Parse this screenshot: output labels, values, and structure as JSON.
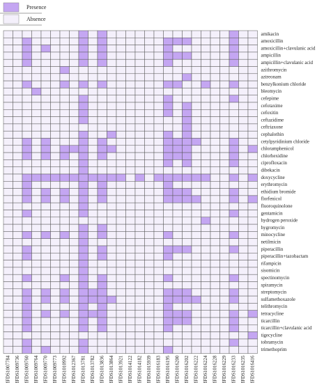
{
  "chart_data": {
    "type": "heatmap",
    "legend": [
      {
        "name": "Presence",
        "color": "#c4a6f2"
      },
      {
        "name": "Absence",
        "color": "#f4f0fb"
      }
    ],
    "x_categories": [
      "MFDS1007784",
      "MFDS1009736",
      "MFDS1009760",
      "MFDS1009764",
      "MFDS1009770",
      "MFDS1009773",
      "MFDS1010992",
      "MFDS1012367",
      "MFDS1013781",
      "MFDS1013782",
      "MFDS1013836",
      "MFDS1013864",
      "MFDS1013921",
      "MFDS1014122",
      "MFDS1014182",
      "MFDS1015939",
      "MFDS1016183",
      "MFDS1016195",
      "MFDS1016200",
      "MFDS1016202",
      "MFDS1016222",
      "MFDS1016224",
      "MFDS1016228",
      "MFDS1016229",
      "MFDS1016233",
      "MFDS1016235",
      "MFDS1016416"
    ],
    "y_categories": [
      "amikacin",
      "amoxicillin",
      "amoxicillin+clavulanic acid",
      "ampicillin",
      "ampicillin+clavulanic acid",
      "azithromycin",
      "aztreonam",
      "benzylkonium chloride",
      "bleomycin",
      "cefepime",
      "cefotaxime",
      "cefoxitin",
      "ceftazidime",
      "ceftriaxone",
      "cephalothin",
      "cetylpyridinium chloride",
      "chloramphenicol",
      "chlorhexidine",
      "ciprofloxacin",
      "dibekacin",
      "doxycycline",
      "erythromycin",
      "ethidium bromide",
      "florfenicol",
      "fluoroquinolone",
      "gentamicin",
      "hydrogen peroxide",
      "hygromycin",
      "minocycline",
      "netilmicin",
      "piperacillin",
      "piperacillin+tazobactam",
      "rifampicin",
      "sisomicin",
      "spectinomycin",
      "spiramycin",
      "streptomycin",
      "sulfamethoxazole",
      "telithromycin",
      "tetracycline",
      "ticarcillin",
      "ticarcillin+clavulanic acid",
      "tigecycline",
      "tobramycin",
      "trimethoprim"
    ],
    "values": [
      [
        0,
        0,
        0,
        0,
        0,
        0,
        0,
        0,
        1,
        0,
        1,
        0,
        0,
        0,
        0,
        0,
        0,
        0,
        0,
        0,
        0,
        0,
        0,
        0,
        1,
        0,
        0
      ],
      [
        0,
        0,
        1,
        0,
        0,
        0,
        0,
        0,
        1,
        0,
        1,
        0,
        0,
        0,
        0,
        0,
        0,
        1,
        1,
        1,
        0,
        0,
        0,
        0,
        1,
        0,
        0
      ],
      [
        0,
        0,
        1,
        0,
        1,
        0,
        0,
        0,
        1,
        0,
        1,
        0,
        0,
        0,
        0,
        0,
        0,
        1,
        0,
        0,
        0,
        0,
        0,
        0,
        1,
        0,
        0
      ],
      [
        0,
        0,
        1,
        0,
        0,
        0,
        0,
        0,
        1,
        0,
        1,
        0,
        0,
        0,
        0,
        0,
        0,
        1,
        1,
        1,
        0,
        0,
        0,
        0,
        1,
        0,
        0
      ],
      [
        0,
        0,
        1,
        0,
        0,
        0,
        0,
        0,
        1,
        0,
        1,
        0,
        0,
        0,
        0,
        0,
        0,
        1,
        0,
        0,
        0,
        0,
        0,
        0,
        1,
        0,
        0
      ],
      [
        0,
        0,
        0,
        0,
        0,
        0,
        1,
        0,
        0,
        0,
        0,
        0,
        0,
        0,
        0,
        0,
        0,
        0,
        0,
        0,
        0,
        0,
        0,
        0,
        0,
        0,
        0
      ],
      [
        0,
        0,
        0,
        0,
        0,
        0,
        0,
        0,
        0,
        0,
        0,
        0,
        0,
        0,
        0,
        0,
        0,
        0,
        0,
        1,
        0,
        0,
        0,
        0,
        0,
        0,
        0
      ],
      [
        0,
        0,
        1,
        0,
        0,
        0,
        1,
        0,
        1,
        0,
        1,
        0,
        0,
        0,
        0,
        0,
        0,
        1,
        1,
        0,
        0,
        1,
        0,
        0,
        1,
        0,
        0
      ],
      [
        0,
        0,
        0,
        1,
        0,
        0,
        0,
        0,
        0,
        0,
        0,
        0,
        0,
        0,
        0,
        0,
        0,
        0,
        0,
        0,
        0,
        0,
        0,
        0,
        0,
        0,
        0
      ],
      [
        0,
        0,
        0,
        0,
        0,
        0,
        0,
        0,
        1,
        0,
        0,
        0,
        0,
        0,
        0,
        0,
        0,
        1,
        0,
        0,
        0,
        0,
        0,
        0,
        1,
        0,
        0
      ],
      [
        0,
        0,
        0,
        0,
        0,
        0,
        0,
        0,
        1,
        0,
        0,
        0,
        0,
        0,
        0,
        0,
        0,
        1,
        0,
        1,
        0,
        0,
        0,
        0,
        0,
        0,
        0
      ],
      [
        0,
        0,
        0,
        0,
        0,
        0,
        0,
        0,
        1,
        0,
        0,
        0,
        0,
        0,
        0,
        0,
        0,
        1,
        0,
        1,
        0,
        0,
        0,
        0,
        0,
        0,
        0
      ],
      [
        0,
        0,
        0,
        0,
        0,
        0,
        0,
        0,
        1,
        0,
        0,
        0,
        0,
        0,
        0,
        0,
        0,
        0,
        0,
        1,
        0,
        0,
        0,
        0,
        0,
        0,
        0
      ],
      [
        0,
        0,
        0,
        0,
        0,
        0,
        0,
        0,
        0,
        0,
        0,
        0,
        0,
        0,
        0,
        0,
        0,
        0,
        0,
        1,
        0,
        0,
        0,
        0,
        0,
        0,
        0
      ],
      [
        0,
        0,
        0,
        0,
        0,
        0,
        0,
        0,
        1,
        0,
        0,
        1,
        0,
        0,
        0,
        0,
        0,
        1,
        0,
        1,
        0,
        0,
        0,
        0,
        0,
        0,
        0
      ],
      [
        0,
        0,
        1,
        0,
        1,
        0,
        0,
        0,
        1,
        0,
        1,
        0,
        0,
        0,
        0,
        0,
        0,
        1,
        1,
        1,
        1,
        0,
        0,
        0,
        1,
        0,
        0
      ],
      [
        0,
        0,
        1,
        0,
        1,
        0,
        1,
        1,
        1,
        0,
        1,
        1,
        0,
        0,
        0,
        0,
        0,
        1,
        1,
        1,
        0,
        0,
        0,
        0,
        1,
        0,
        1
      ],
      [
        0,
        0,
        1,
        0,
        1,
        0,
        1,
        0,
        1,
        0,
        1,
        0,
        0,
        0,
        0,
        0,
        0,
        1,
        1,
        1,
        0,
        0,
        0,
        0,
        1,
        0,
        0
      ],
      [
        0,
        0,
        0,
        0,
        0,
        0,
        0,
        0,
        1,
        0,
        0,
        0,
        0,
        0,
        0,
        0,
        0,
        1,
        0,
        1,
        0,
        0,
        0,
        0,
        1,
        0,
        0
      ],
      [
        0,
        0,
        0,
        0,
        0,
        0,
        0,
        0,
        1,
        0,
        0,
        0,
        0,
        0,
        0,
        0,
        0,
        0,
        0,
        0,
        0,
        0,
        0,
        0,
        0,
        0,
        0
      ],
      [
        0,
        0,
        1,
        1,
        1,
        1,
        1,
        1,
        1,
        1,
        1,
        1,
        1,
        0,
        1,
        0,
        1,
        1,
        1,
        1,
        1,
        1,
        0,
        0,
        1,
        0,
        1
      ],
      [
        0,
        0,
        1,
        0,
        0,
        0,
        0,
        0,
        1,
        0,
        1,
        0,
        0,
        0,
        0,
        0,
        0,
        1,
        0,
        0,
        0,
        0,
        0,
        0,
        0,
        0,
        0
      ],
      [
        0,
        0,
        1,
        0,
        1,
        0,
        1,
        0,
        1,
        0,
        1,
        0,
        0,
        0,
        0,
        0,
        0,
        1,
        1,
        1,
        0,
        0,
        0,
        0,
        1,
        0,
        0
      ],
      [
        0,
        0,
        1,
        0,
        1,
        0,
        1,
        0,
        1,
        0,
        1,
        0,
        0,
        0,
        0,
        0,
        0,
        1,
        1,
        1,
        1,
        0,
        0,
        0,
        1,
        0,
        1
      ],
      [
        0,
        0,
        0,
        0,
        0,
        0,
        0,
        0,
        1,
        0,
        0,
        0,
        0,
        0,
        0,
        0,
        0,
        0,
        0,
        0,
        0,
        0,
        0,
        0,
        0,
        0,
        0
      ],
      [
        0,
        0,
        1,
        0,
        0,
        0,
        0,
        0,
        1,
        0,
        0,
        0,
        0,
        0,
        0,
        0,
        0,
        0,
        0,
        0,
        0,
        0,
        0,
        0,
        1,
        0,
        0
      ],
      [
        0,
        0,
        0,
        0,
        0,
        0,
        0,
        0,
        0,
        0,
        0,
        0,
        0,
        0,
        0,
        0,
        0,
        0,
        0,
        0,
        0,
        1,
        0,
        0,
        0,
        0,
        0
      ],
      [
        0,
        0,
        0,
        0,
        0,
        0,
        0,
        0,
        1,
        0,
        1,
        0,
        0,
        0,
        0,
        0,
        0,
        0,
        0,
        0,
        0,
        0,
        0,
        0,
        0,
        0,
        0
      ],
      [
        0,
        0,
        1,
        0,
        1,
        0,
        1,
        0,
        1,
        0,
        1,
        0,
        0,
        0,
        0,
        0,
        0,
        1,
        0,
        0,
        0,
        0,
        0,
        0,
        1,
        0,
        0
      ],
      [
        0,
        0,
        0,
        0,
        0,
        0,
        0,
        0,
        1,
        0,
        0,
        0,
        0,
        0,
        0,
        0,
        0,
        0,
        0,
        0,
        0,
        0,
        0,
        0,
        0,
        0,
        0
      ],
      [
        0,
        0,
        1,
        0,
        0,
        0,
        0,
        0,
        1,
        0,
        1,
        0,
        0,
        0,
        0,
        0,
        0,
        1,
        1,
        1,
        0,
        0,
        0,
        0,
        1,
        0,
        0
      ],
      [
        0,
        0,
        1,
        0,
        0,
        0,
        0,
        0,
        1,
        0,
        1,
        0,
        0,
        0,
        0,
        0,
        0,
        1,
        0,
        0,
        0,
        0,
        0,
        0,
        0,
        0,
        0
      ],
      [
        0,
        0,
        0,
        0,
        0,
        0,
        0,
        0,
        1,
        0,
        0,
        0,
        0,
        0,
        0,
        0,
        0,
        0,
        0,
        0,
        0,
        0,
        0,
        0,
        0,
        0,
        0
      ],
      [
        0,
        0,
        0,
        0,
        0,
        0,
        0,
        0,
        1,
        0,
        0,
        0,
        0,
        0,
        0,
        0,
        0,
        0,
        0,
        0,
        0,
        0,
        0,
        0,
        0,
        0,
        0
      ],
      [
        0,
        0,
        1,
        0,
        0,
        0,
        1,
        0,
        1,
        0,
        1,
        0,
        0,
        0,
        0,
        0,
        0,
        1,
        0,
        0,
        0,
        0,
        0,
        0,
        1,
        0,
        0
      ],
      [
        0,
        0,
        0,
        0,
        0,
        0,
        0,
        0,
        1,
        0,
        1,
        0,
        0,
        0,
        0,
        0,
        0,
        0,
        0,
        0,
        0,
        0,
        0,
        0,
        0,
        0,
        0
      ],
      [
        0,
        0,
        1,
        0,
        1,
        0,
        1,
        0,
        1,
        1,
        1,
        0,
        0,
        0,
        0,
        0,
        0,
        1,
        1,
        1,
        0,
        0,
        0,
        0,
        1,
        0,
        0
      ],
      [
        0,
        0,
        1,
        0,
        1,
        0,
        1,
        0,
        1,
        1,
        1,
        1,
        0,
        0,
        0,
        0,
        0,
        1,
        1,
        1,
        1,
        0,
        0,
        0,
        1,
        0,
        0
      ],
      [
        0,
        0,
        1,
        0,
        0,
        0,
        0,
        0,
        1,
        0,
        1,
        0,
        0,
        0,
        0,
        0,
        0,
        1,
        0,
        0,
        0,
        0,
        0,
        0,
        0,
        0,
        0
      ],
      [
        0,
        0,
        1,
        0,
        1,
        0,
        1,
        0,
        1,
        1,
        1,
        0,
        0,
        0,
        0,
        0,
        0,
        1,
        1,
        1,
        0,
        0,
        0,
        0,
        1,
        0,
        1
      ],
      [
        0,
        0,
        1,
        0,
        0,
        0,
        0,
        0,
        1,
        0,
        1,
        0,
        0,
        0,
        0,
        0,
        0,
        1,
        1,
        1,
        0,
        0,
        0,
        0,
        1,
        0,
        0
      ],
      [
        0,
        0,
        1,
        0,
        0,
        0,
        0,
        0,
        1,
        0,
        1,
        0,
        0,
        0,
        0,
        0,
        0,
        1,
        0,
        0,
        0,
        0,
        0,
        0,
        1,
        0,
        0
      ],
      [
        0,
        0,
        0,
        0,
        0,
        0,
        0,
        0,
        0,
        0,
        0,
        0,
        0,
        0,
        0,
        0,
        0,
        0,
        0,
        0,
        0,
        0,
        0,
        0,
        0,
        0,
        1
      ],
      [
        0,
        0,
        1,
        0,
        0,
        0,
        0,
        0,
        1,
        0,
        0,
        0,
        0,
        0,
        0,
        0,
        0,
        0,
        0,
        0,
        0,
        0,
        0,
        0,
        1,
        0,
        0
      ],
      [
        0,
        0,
        1,
        0,
        1,
        0,
        0,
        0,
        1,
        0,
        0,
        0,
        0,
        0,
        0,
        0,
        0,
        1,
        0,
        0,
        0,
        0,
        0,
        0,
        0,
        0,
        0
      ]
    ]
  }
}
